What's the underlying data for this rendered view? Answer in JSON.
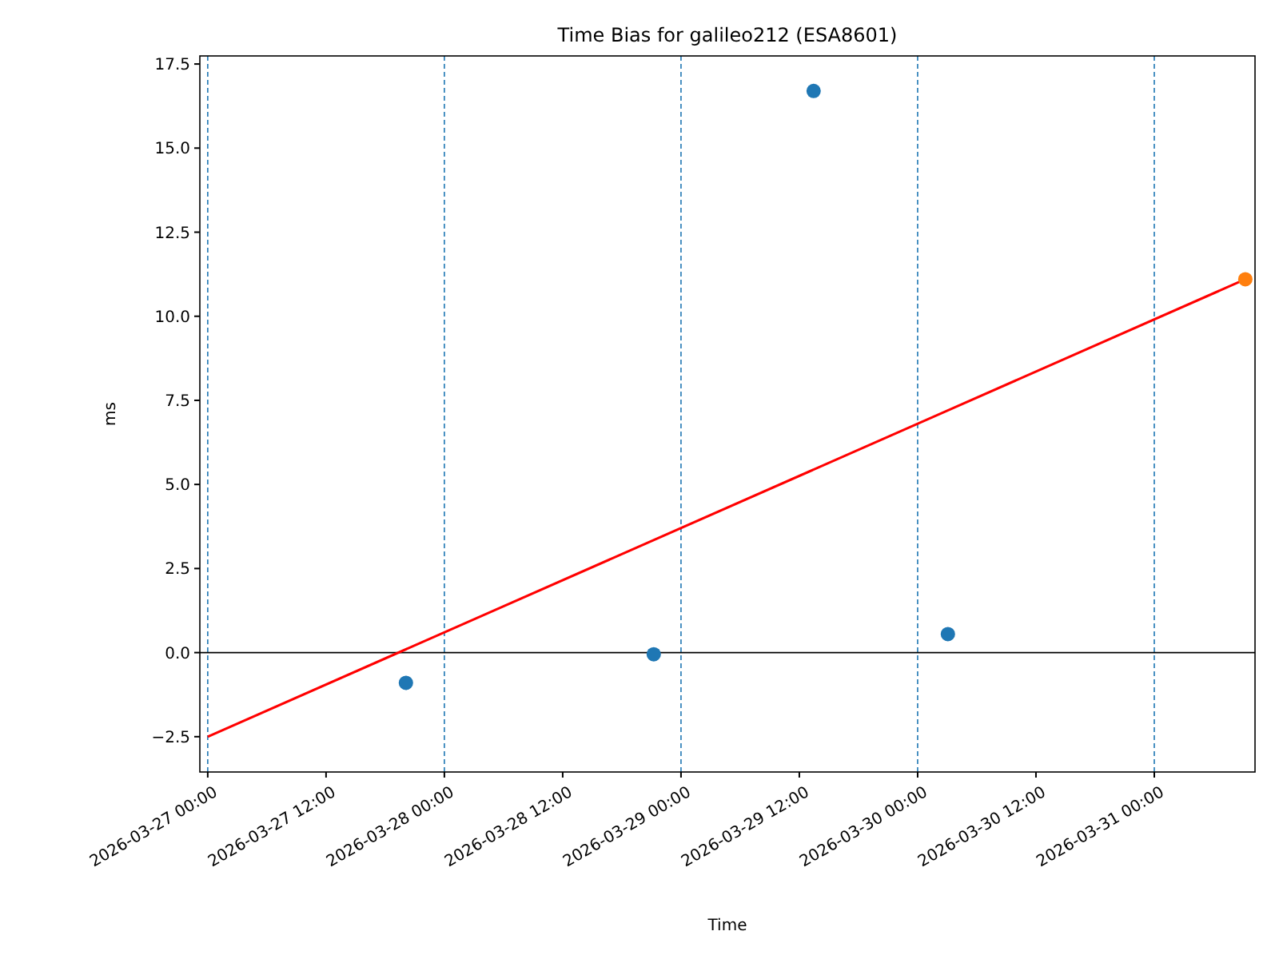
{
  "chart_data": {
    "type": "scatter",
    "title": "Time Bias for galileo212 (ESA8601)",
    "xlabel": "Time",
    "ylabel": "ms",
    "xlim": [
      "2026-03-26T23:12",
      "2026-03-31T10:13"
    ],
    "ylim": [
      -3.55,
      17.74
    ],
    "xticks": [
      {
        "value": "2026-03-27T00:00",
        "label": "2026-03-27 00:00"
      },
      {
        "value": "2026-03-27T12:00",
        "label": "2026-03-27 12:00"
      },
      {
        "value": "2026-03-28T00:00",
        "label": "2026-03-28 00:00"
      },
      {
        "value": "2026-03-28T12:00",
        "label": "2026-03-28 12:00"
      },
      {
        "value": "2026-03-29T00:00",
        "label": "2026-03-29 00:00"
      },
      {
        "value": "2026-03-29T12:00",
        "label": "2026-03-29 12:00"
      },
      {
        "value": "2026-03-30T00:00",
        "label": "2026-03-30 00:00"
      },
      {
        "value": "2026-03-30T12:00",
        "label": "2026-03-30 12:00"
      },
      {
        "value": "2026-03-31T00:00",
        "label": "2026-03-31 00:00"
      }
    ],
    "yticks": [
      {
        "value": -2.5,
        "label": "−2.5"
      },
      {
        "value": 0,
        "label": "0.0"
      },
      2.5,
      {
        "value": 5,
        "label": "5.0"
      },
      7.5,
      {
        "value": 10,
        "label": "10.0"
      },
      12.5,
      {
        "value": 15,
        "label": "15.0"
      },
      17.5
    ],
    "series": [
      {
        "color": "#1f77b4",
        "marker": "circle",
        "x": [
          "2026-03-27T20:06",
          "2026-03-28T21:14",
          "2026-03-29T13:27",
          "2026-03-30T03:04"
        ],
        "values": [
          -0.9,
          -0.05,
          16.7,
          0.55
        ]
      },
      {
        "type": "line",
        "color": "#ff0000",
        "marker": "none",
        "line_style": "solid",
        "x": [
          "2026-03-27T00:00",
          "2026-03-31T09:14"
        ],
        "values": [
          -2.5,
          11.1
        ]
      },
      {
        "color": "#ff7f0e",
        "marker": "circle",
        "x": [
          "2026-03-31T09:14"
        ],
        "values": [
          11.1
        ]
      }
    ],
    "ref_lines": [
      {
        "axis": "x",
        "value": "2026-03-27T00:00",
        "color": "#1f77b4",
        "line_style": "dashed"
      },
      {
        "axis": "x",
        "value": "2026-03-28T00:00",
        "color": "#1f77b4",
        "line_style": "dashed"
      },
      {
        "axis": "x",
        "value": "2026-03-29T00:00",
        "color": "#1f77b4",
        "line_style": "dashed"
      },
      {
        "axis": "x",
        "value": "2026-03-30T00:00",
        "color": "#1f77b4",
        "line_style": "dashed"
      },
      {
        "axis": "x",
        "value": "2026-03-31T00:00",
        "color": "#1f77b4",
        "line_style": "dashed"
      },
      {
        "axis": "y",
        "value": 0,
        "color": "#000000",
        "line_style": "solid"
      }
    ]
  }
}
